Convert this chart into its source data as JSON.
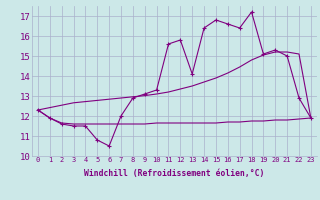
{
  "x": [
    0,
    1,
    2,
    3,
    4,
    5,
    6,
    7,
    8,
    9,
    10,
    11,
    12,
    13,
    14,
    15,
    16,
    17,
    18,
    19,
    20,
    21,
    22,
    23
  ],
  "y_curve1": [
    12.3,
    11.9,
    11.6,
    11.5,
    11.5,
    10.8,
    10.5,
    12.0,
    12.9,
    13.1,
    13.3,
    15.6,
    15.8,
    14.1,
    16.4,
    16.8,
    16.6,
    16.4,
    17.2,
    15.1,
    15.3,
    15.0,
    12.9,
    11.9
  ],
  "y_curve2": [
    12.3,
    11.9,
    11.65,
    11.6,
    11.6,
    11.6,
    11.6,
    11.6,
    11.6,
    11.6,
    11.65,
    11.65,
    11.65,
    11.65,
    11.65,
    11.65,
    11.7,
    11.7,
    11.75,
    11.75,
    11.8,
    11.8,
    11.85,
    11.9
  ],
  "y_trend": [
    12.3,
    12.42,
    12.54,
    12.66,
    12.72,
    12.78,
    12.84,
    12.9,
    12.96,
    13.02,
    13.1,
    13.2,
    13.35,
    13.5,
    13.7,
    13.9,
    14.15,
    14.45,
    14.8,
    15.05,
    15.2,
    15.2,
    15.1,
    11.9
  ],
  "line_color": "#800080",
  "bg_color": "#cce8e8",
  "grid_color": "#aab0cc",
  "xlim": [
    -0.5,
    23.5
  ],
  "ylim": [
    10.0,
    17.5
  ],
  "yticks": [
    10,
    11,
    12,
    13,
    14,
    15,
    16,
    17
  ],
  "xticks": [
    0,
    1,
    2,
    3,
    4,
    5,
    6,
    7,
    8,
    9,
    10,
    11,
    12,
    13,
    14,
    15,
    16,
    17,
    18,
    19,
    20,
    21,
    22,
    23
  ],
  "xlabel": "Windchill (Refroidissement éolien,°C)"
}
